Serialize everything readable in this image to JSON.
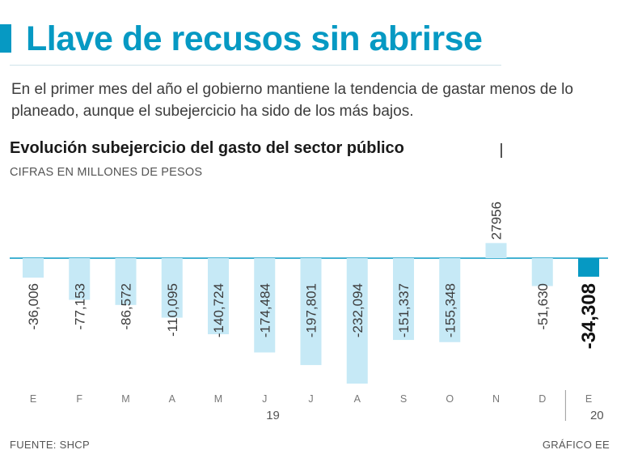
{
  "header": {
    "headline": "Llave de recusos sin abrirse",
    "subtitle": "En el primer mes del año el gobierno mantiene la tendencia de gastar menos de lo planeado, aunque el subejercicio ha sido de los más bajos."
  },
  "chart_data": {
    "type": "bar",
    "title": "Evolución subejercicio del gasto del sector público",
    "units": "CIFRAS EN MILLONES DE PESOS",
    "categories": [
      "E",
      "F",
      "M",
      "A",
      "M",
      "J",
      "J",
      "A",
      "S",
      "O",
      "N",
      "D",
      "E"
    ],
    "values": [
      -36006,
      -77153,
      -86572,
      -110095,
      -140724,
      -174484,
      -197801,
      -232094,
      -151337,
      -155348,
      27956,
      -51630,
      -34308
    ],
    "value_labels": [
      "-36,006",
      "-77,153",
      "-86,572",
      "-110,095",
      "-140,724",
      "-174,484",
      "-197,801",
      "-232,094",
      "-151,337",
      "-155,348",
      "27956",
      "-51,630",
      "-34,308"
    ],
    "year_labels": [
      {
        "label": "19",
        "category_index": 5
      },
      {
        "label": "20",
        "category_index": 12
      }
    ],
    "highlight_index": 12,
    "colors": {
      "bar": "#c6e9f6",
      "highlight": "#0699c3",
      "baseline": "#0699c3"
    },
    "ylim": [
      -240000,
      40000
    ]
  },
  "footer": {
    "source": "FUENTE: SHCP",
    "credit": "GRÁFICO EE"
  }
}
